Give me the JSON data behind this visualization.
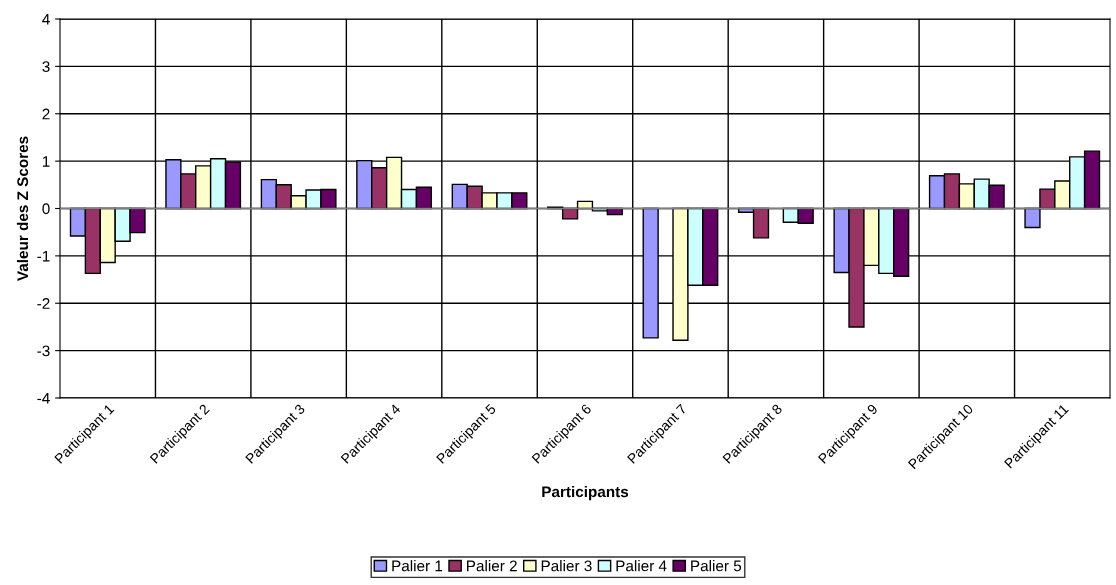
{
  "chart_data": {
    "type": "bar",
    "xlabel": "Participants",
    "ylabel": "Valeur des Z Scores",
    "categories": [
      "Participant 1",
      "Participant 2",
      "Participant 3",
      "Participant 4",
      "Participant 5",
      "Participant 6",
      "Participant 7",
      "Participant 8",
      "Participant 9",
      "Participant 10",
      "Participant 11"
    ],
    "series": [
      {
        "name": "Palier 1",
        "color": "#9999ff",
        "values": [
          -0.58,
          1.03,
          0.61,
          1.01,
          0.51,
          0.03,
          -2.73,
          -0.08,
          -1.35,
          0.69,
          -0.4
        ]
      },
      {
        "name": "Palier 2",
        "color": "#993366",
        "values": [
          -1.37,
          0.73,
          0.5,
          0.86,
          0.47,
          -0.22,
          null,
          -0.62,
          -2.5,
          0.73,
          0.41
        ]
      },
      {
        "name": "Palier 3",
        "color": "#ffffcc",
        "values": [
          -1.14,
          0.9,
          0.27,
          1.08,
          0.33,
          0.15,
          -2.78,
          null,
          -1.2,
          0.52,
          0.58
        ]
      },
      {
        "name": "Palier 4",
        "color": "#ccffff",
        "values": [
          -0.69,
          1.05,
          0.39,
          0.4,
          0.33,
          -0.05,
          -1.62,
          -0.29,
          -1.37,
          0.62,
          1.09
        ]
      },
      {
        "name": "Palier 5",
        "color": "#660066",
        "values": [
          -0.51,
          0.98,
          0.4,
          0.45,
          0.33,
          -0.13,
          -1.62,
          -0.31,
          -1.43,
          0.49,
          1.21
        ]
      }
    ],
    "ylim": [
      -4,
      4
    ],
    "yticks": [
      -4,
      -3,
      -2,
      -1,
      0,
      1,
      2,
      3,
      4
    ],
    "grid": true,
    "legend": "bottom"
  }
}
